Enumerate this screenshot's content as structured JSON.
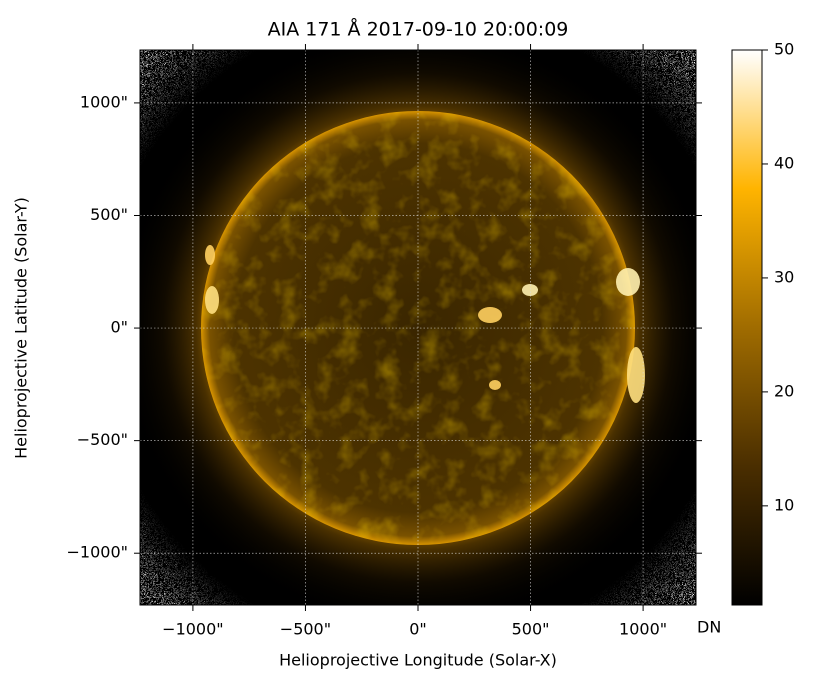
{
  "chart_data": {
    "type": "image",
    "title": "AIA 171 Å 2017-09-10 20:00:09",
    "x_label": "Helioprojective Longitude (Solar-X)",
    "y_label": "Helioprojective Latitude (Solar-Y)",
    "xlim": [
      -1235,
      1235
    ],
    "ylim": [
      -1230,
      1235
    ],
    "xticks": [
      {
        "value": -1000,
        "label": "−1000\""
      },
      {
        "value": -500,
        "label": "−500\""
      },
      {
        "value": 0,
        "label": "0\""
      },
      {
        "value": 500,
        "label": "500\""
      },
      {
        "value": 1000,
        "label": "1000\""
      }
    ],
    "yticks": [
      {
        "value": -1000,
        "label": "−1000\""
      },
      {
        "value": -500,
        "label": "−500\""
      },
      {
        "value": 0,
        "label": "0\""
      },
      {
        "value": 500,
        "label": "500\""
      },
      {
        "value": 1000,
        "label": "1000\""
      }
    ],
    "grid": true,
    "colorbar": {
      "label": "DN",
      "lim": [
        1.3,
        50
      ],
      "ticks": [
        10,
        20,
        30,
        40,
        50
      ],
      "colormap": [
        "#000000",
        "#4a2e00",
        "#a06c00",
        "#ffb400",
        "#ffffff"
      ]
    }
  }
}
